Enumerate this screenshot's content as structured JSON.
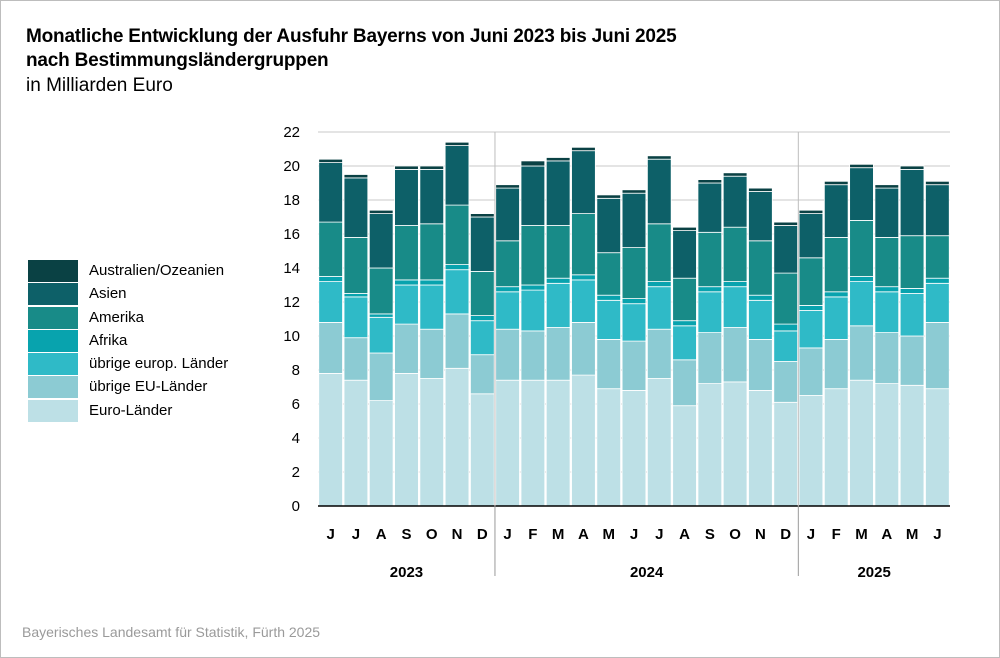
{
  "title_line1": "Monatliche Entwicklung der Ausfuhr Bayerns von Juni 2023 bis Juni 2025",
  "title_line2": "nach Bestimmungsländergruppen",
  "subtitle": "in Milliarden Euro",
  "source": "Bayerisches Landesamt für Statistik, Fürth 2025",
  "colors": {
    "euro": "#bde0e6",
    "eu": "#8ccbd3",
    "europ": "#2fbac7",
    "afrika": "#08a3ae",
    "amerika": "#188b88",
    "asien": "#0d6068",
    "ozeanien": "#0a4144",
    "gridline": "#c8c8c8",
    "separator": "#ffffff"
  },
  "chart_data": {
    "type": "bar",
    "stacked": true,
    "categories": [
      "J",
      "J",
      "A",
      "S",
      "O",
      "N",
      "D",
      "J",
      "F",
      "M",
      "A",
      "M",
      "J",
      "J",
      "A",
      "S",
      "O",
      "N",
      "D",
      "J",
      "F",
      "M",
      "A",
      "M",
      "J"
    ],
    "years": [
      {
        "label": "2023",
        "start": 0,
        "end": 6
      },
      {
        "label": "2024",
        "start": 7,
        "end": 18
      },
      {
        "label": "2025",
        "start": 19,
        "end": 24
      }
    ],
    "ylim": [
      0,
      22
    ],
    "yticks": [
      0,
      2,
      4,
      6,
      8,
      10,
      12,
      14,
      16,
      18,
      20,
      22
    ],
    "grid": true,
    "legend_position": "left",
    "series": [
      {
        "name": "Euro-Länder",
        "key": "euro",
        "values": [
          7.8,
          7.4,
          6.2,
          7.8,
          7.5,
          8.1,
          6.6,
          7.4,
          7.4,
          7.4,
          7.7,
          6.9,
          6.8,
          7.5,
          5.9,
          7.2,
          7.3,
          6.8,
          6.1,
          6.5,
          6.9,
          7.4,
          7.2,
          7.1,
          6.9
        ]
      },
      {
        "name": "übrige EU-Länder",
        "key": "eu",
        "values": [
          3.0,
          2.5,
          2.8,
          2.9,
          2.9,
          3.2,
          2.3,
          3.0,
          2.9,
          3.1,
          3.1,
          2.9,
          2.9,
          2.9,
          2.7,
          3.0,
          3.2,
          3.0,
          2.4,
          2.8,
          2.9,
          3.2,
          3.0,
          2.9,
          3.9
        ]
      },
      {
        "name": "übrige europ. Länder",
        "key": "europ",
        "values": [
          2.4,
          2.4,
          2.1,
          2.3,
          2.6,
          2.6,
          2.0,
          2.2,
          2.4,
          2.6,
          2.5,
          2.3,
          2.2,
          2.5,
          2.0,
          2.4,
          2.4,
          2.3,
          1.8,
          2.2,
          2.5,
          2.6,
          2.4,
          2.5,
          2.3
        ]
      },
      {
        "name": "Afrika",
        "key": "afrika",
        "values": [
          0.3,
          0.2,
          0.2,
          0.3,
          0.3,
          0.3,
          0.3,
          0.3,
          0.3,
          0.3,
          0.3,
          0.3,
          0.3,
          0.3,
          0.3,
          0.3,
          0.3,
          0.3,
          0.4,
          0.3,
          0.3,
          0.3,
          0.3,
          0.3,
          0.3
        ]
      },
      {
        "name": "Amerika",
        "key": "amerika",
        "values": [
          3.2,
          3.3,
          2.7,
          3.2,
          3.3,
          3.5,
          2.6,
          2.7,
          3.5,
          3.1,
          3.6,
          2.5,
          3.0,
          3.4,
          2.5,
          3.2,
          3.2,
          3.2,
          3.0,
          2.8,
          3.2,
          3.3,
          2.9,
          3.1,
          2.5
        ]
      },
      {
        "name": "Asien",
        "key": "asien",
        "values": [
          3.5,
          3.5,
          3.2,
          3.3,
          3.2,
          3.5,
          3.2,
          3.1,
          3.5,
          3.8,
          3.7,
          3.2,
          3.2,
          3.8,
          2.8,
          2.9,
          3.0,
          2.9,
          2.8,
          2.6,
          3.1,
          3.1,
          2.9,
          3.9,
          3.0
        ]
      },
      {
        "name": "Australien/Ozeanien",
        "key": "ozeanien",
        "values": [
          0.2,
          0.2,
          0.2,
          0.2,
          0.2,
          0.2,
          0.2,
          0.2,
          0.3,
          0.2,
          0.2,
          0.2,
          0.2,
          0.2,
          0.2,
          0.2,
          0.2,
          0.2,
          0.2,
          0.2,
          0.2,
          0.2,
          0.2,
          0.2,
          0.2
        ]
      }
    ],
    "legend_order": [
      "ozeanien",
      "asien",
      "amerika",
      "afrika",
      "europ",
      "eu",
      "euro"
    ]
  }
}
